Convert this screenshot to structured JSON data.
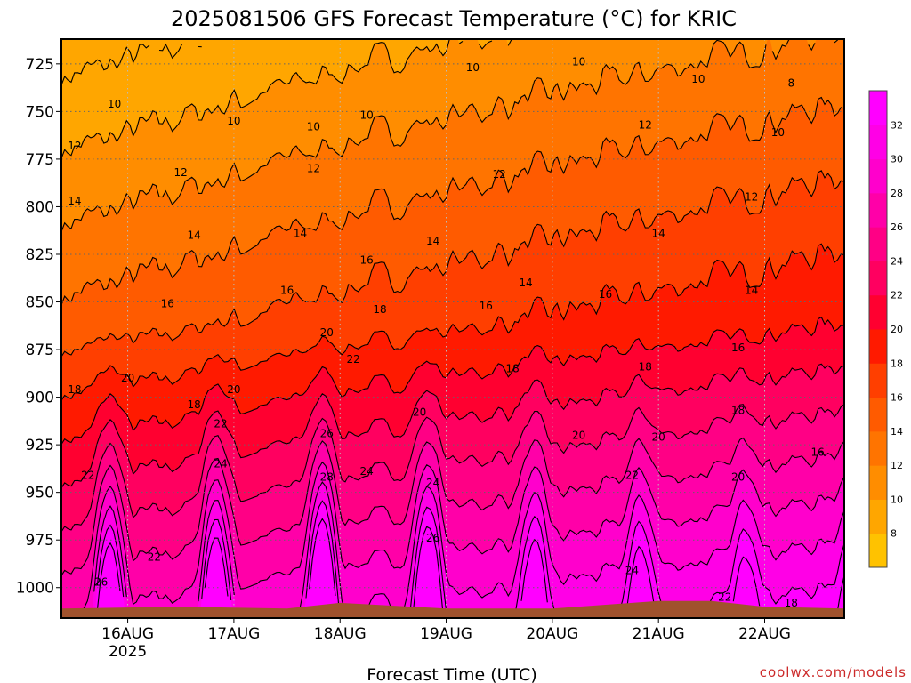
{
  "chart_data": {
    "type": "heatmap",
    "title": "2025081506 GFS Forecast Temperature (°C) for KRIC",
    "xlabel": "Forecast Time (UTC)",
    "ylabel": "",
    "y_scale": "pressure (inverted)",
    "ylim": [
      712,
      1016
    ],
    "yticks": [
      725,
      750,
      775,
      800,
      825,
      850,
      875,
      900,
      925,
      950,
      975,
      1000
    ],
    "xlim": [
      "2025-08-15 09:00",
      "2025-08-22 18:00"
    ],
    "xticks": [
      {
        "label": "16AUG",
        "sublabel": "2025",
        "time": "2025-08-16 00:00"
      },
      {
        "label": "17AUG",
        "sublabel": "",
        "time": "2025-08-17 00:00"
      },
      {
        "label": "18AUG",
        "sublabel": "",
        "time": "2025-08-18 00:00"
      },
      {
        "label": "19AUG",
        "sublabel": "",
        "time": "2025-08-19 00:00"
      },
      {
        "label": "20AUG",
        "sublabel": "",
        "time": "2025-08-20 00:00"
      },
      {
        "label": "21AUG",
        "sublabel": "",
        "time": "2025-08-21 00:00"
      },
      {
        "label": "22AUG",
        "sublabel": "",
        "time": "2025-08-22 00:00"
      }
    ],
    "grid": true,
    "legend": "right colorbar",
    "colorbar": {
      "ticks": [
        "8",
        "10",
        "12",
        "14",
        "16",
        "18",
        "20",
        "22",
        "24",
        "26",
        "28",
        "30",
        "32"
      ],
      "colors": [
        "#ffc200",
        "#ffa600",
        "#ff8d00",
        "#ff7400",
        "#ff5b00",
        "#ff3f00",
        "#ff1a00",
        "#ff0030",
        "#ff0060",
        "#ff0085",
        "#ff00a8",
        "#ff00cc",
        "#ff00e6",
        "#ff00ff"
      ]
    },
    "contour_interval": 2,
    "surface_pressure": [
      {
        "time": "2025-08-15 09:00",
        "value": 1011
      },
      {
        "time": "2025-08-16 12:00",
        "value": 1010
      },
      {
        "time": "2025-08-17 12:00",
        "value": 1011
      },
      {
        "time": "2025-08-18 00:00",
        "value": 1008
      },
      {
        "time": "2025-08-19 00:00",
        "value": 1011
      },
      {
        "time": "2025-08-20 00:00",
        "value": 1011
      },
      {
        "time": "2025-08-21 00:00",
        "value": 1007
      },
      {
        "time": "2025-08-21 12:00",
        "value": 1007
      },
      {
        "time": "2025-08-22 00:00",
        "value": 1010
      },
      {
        "time": "2025-08-22 18:00",
        "value": 1011
      }
    ],
    "contour_labels": [
      {
        "v": "10",
        "time": "2025-08-15 21:00",
        "p": 746
      },
      {
        "v": "10",
        "time": "2025-08-17 00:00",
        "p": 755
      },
      {
        "v": "10",
        "time": "2025-08-17 18:00",
        "p": 758
      },
      {
        "v": "10",
        "time": "2025-08-18 06:00",
        "p": 752
      },
      {
        "v": "10",
        "time": "2025-08-19 06:00",
        "p": 727
      },
      {
        "v": "10",
        "time": "2025-08-20 06:00",
        "p": 724
      },
      {
        "v": "10",
        "time": "2025-08-21 09:00",
        "p": 733
      },
      {
        "v": "8",
        "time": "2025-08-22 06:00",
        "p": 735
      },
      {
        "v": "10",
        "time": "2025-08-22 03:00",
        "p": 761
      },
      {
        "v": "12",
        "time": "2025-08-15 12:00",
        "p": 768
      },
      {
        "v": "12",
        "time": "2025-08-16 12:00",
        "p": 782
      },
      {
        "v": "12",
        "time": "2025-08-17 18:00",
        "p": 780
      },
      {
        "v": "12",
        "time": "2025-08-19 12:00",
        "p": 783
      },
      {
        "v": "12",
        "time": "2025-08-20 21:00",
        "p": 757
      },
      {
        "v": "12",
        "time": "2025-08-21 21:00",
        "p": 795
      },
      {
        "v": "14",
        "time": "2025-08-15 12:00",
        "p": 797
      },
      {
        "v": "14",
        "time": "2025-08-16 15:00",
        "p": 815
      },
      {
        "v": "14",
        "time": "2025-08-17 15:00",
        "p": 814
      },
      {
        "v": "14",
        "time": "2025-08-18 21:00",
        "p": 818
      },
      {
        "v": "14",
        "time": "2025-08-19 18:00",
        "p": 840
      },
      {
        "v": "14",
        "time": "2025-08-21 00:00",
        "p": 814
      },
      {
        "v": "14",
        "time": "2025-08-21 21:00",
        "p": 844
      },
      {
        "v": "16",
        "time": "2025-08-16 09:00",
        "p": 851
      },
      {
        "v": "16",
        "time": "2025-08-17 12:00",
        "p": 844
      },
      {
        "v": "16",
        "time": "2025-08-18 06:00",
        "p": 828
      },
      {
        "v": "16",
        "time": "2025-08-19 09:00",
        "p": 852
      },
      {
        "v": "16",
        "time": "2025-08-20 12:00",
        "p": 846
      },
      {
        "v": "16",
        "time": "2025-08-21 18:00",
        "p": 874
      },
      {
        "v": "16",
        "time": "2025-08-22 12:00",
        "p": 929
      },
      {
        "v": "18",
        "time": "2025-08-15 12:00",
        "p": 896
      },
      {
        "v": "18",
        "time": "2025-08-16 15:00",
        "p": 904
      },
      {
        "v": "18",
        "time": "2025-08-18 09:00",
        "p": 854
      },
      {
        "v": "18",
        "time": "2025-08-19 15:00",
        "p": 885
      },
      {
        "v": "18",
        "time": "2025-08-20 21:00",
        "p": 884
      },
      {
        "v": "18",
        "time": "2025-08-21 18:00",
        "p": 907
      },
      {
        "v": "18",
        "time": "2025-08-22 06:00",
        "p": 1008
      },
      {
        "v": "20",
        "time": "2025-08-16 00:00",
        "p": 890
      },
      {
        "v": "20",
        "time": "2025-08-17 00:00",
        "p": 896
      },
      {
        "v": "20",
        "time": "2025-08-17 21:00",
        "p": 866
      },
      {
        "v": "20",
        "time": "2025-08-18 18:00",
        "p": 908
      },
      {
        "v": "20",
        "time": "2025-08-20 06:00",
        "p": 920
      },
      {
        "v": "20",
        "time": "2025-08-21 00:00",
        "p": 921
      },
      {
        "v": "20",
        "time": "2025-08-21 18:00",
        "p": 942
      },
      {
        "v": "22",
        "time": "2025-08-15 15:00",
        "p": 941
      },
      {
        "v": "22",
        "time": "2025-08-16 21:00",
        "p": 914
      },
      {
        "v": "22",
        "time": "2025-08-16 06:00",
        "p": 984
      },
      {
        "v": "22",
        "time": "2025-08-18 03:00",
        "p": 880
      },
      {
        "v": "22",
        "time": "2025-08-20 18:00",
        "p": 941
      },
      {
        "v": "22",
        "time": "2025-08-21 15:00",
        "p": 1005
      },
      {
        "v": "24",
        "time": "2025-08-16 21:00",
        "p": 935
      },
      {
        "v": "24",
        "time": "2025-08-18 06:00",
        "p": 939
      },
      {
        "v": "24",
        "time": "2025-08-18 21:00",
        "p": 945
      },
      {
        "v": "24",
        "time": "2025-08-20 18:00",
        "p": 991
      },
      {
        "v": "26",
        "time": "2025-08-15 18:00",
        "p": 997
      },
      {
        "v": "26",
        "time": "2025-08-17 21:00",
        "p": 919
      },
      {
        "v": "26",
        "time": "2025-08-18 21:00",
        "p": 974
      },
      {
        "v": "28",
        "time": "2025-08-17 21:00",
        "p": 942
      }
    ]
  },
  "credit": "coolwx.com/models"
}
